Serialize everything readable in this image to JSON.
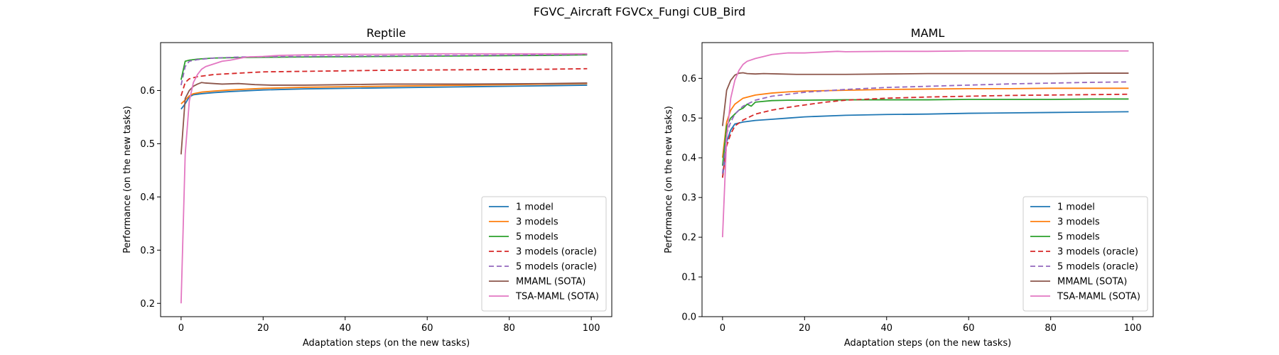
{
  "figure_title": "FGVC_Aircraft FGVCx_Fungi CUB_Bird",
  "chart_data": [
    {
      "type": "line",
      "title": "Reptile",
      "xlabel": "Adaptation steps (on the new tasks)",
      "ylabel": "Performance (on the new tasks)",
      "xlim": [
        -5,
        105
      ],
      "ylim": [
        0.175,
        0.69
      ],
      "xticks": [
        0,
        20,
        40,
        60,
        80,
        100
      ],
      "yticks": [
        0.2,
        0.3,
        0.4,
        0.5,
        0.6
      ],
      "grid": false,
      "legend_position": "lower-right",
      "series": [
        {
          "name": "1 model",
          "color": "#1f77b4",
          "dash": "solid",
          "x": [
            0,
            1,
            2,
            3,
            5,
            8,
            12,
            20,
            30,
            50,
            70,
            90,
            99
          ],
          "y": [
            0.565,
            0.575,
            0.588,
            0.592,
            0.594,
            0.596,
            0.598,
            0.601,
            0.603,
            0.605,
            0.607,
            0.609,
            0.61
          ]
        },
        {
          "name": "3 models",
          "color": "#ff7f0e",
          "dash": "solid",
          "x": [
            0,
            1,
            2,
            3,
            5,
            8,
            12,
            20,
            30,
            50,
            70,
            90,
            99
          ],
          "y": [
            0.575,
            0.582,
            0.59,
            0.594,
            0.597,
            0.599,
            0.601,
            0.604,
            0.606,
            0.608,
            0.61,
            0.612,
            0.613
          ]
        },
        {
          "name": "5 models",
          "color": "#2ca02c",
          "dash": "solid",
          "x": [
            0,
            1,
            2,
            4,
            8,
            15,
            30,
            50,
            70,
            90,
            99
          ],
          "y": [
            0.62,
            0.655,
            0.657,
            0.659,
            0.661,
            0.662,
            0.663,
            0.664,
            0.665,
            0.666,
            0.667
          ]
        },
        {
          "name": "3 models (oracle)",
          "color": "#d62728",
          "dash": "dashed",
          "x": [
            0,
            1,
            2,
            4,
            8,
            15,
            20,
            30,
            50,
            70,
            90,
            99
          ],
          "y": [
            0.59,
            0.615,
            0.622,
            0.626,
            0.63,
            0.633,
            0.635,
            0.636,
            0.638,
            0.639,
            0.64,
            0.641
          ]
        },
        {
          "name": "5 models (oracle)",
          "color": "#9467bd",
          "dash": "dashed",
          "x": [
            0,
            1,
            2,
            4,
            8,
            15,
            30,
            50,
            70,
            90,
            99
          ],
          "y": [
            0.61,
            0.645,
            0.655,
            0.658,
            0.661,
            0.663,
            0.664,
            0.665,
            0.666,
            0.667,
            0.668
          ]
        },
        {
          "name": "MMAML (SOTA)",
          "color": "#8c564b",
          "dash": "solid",
          "x": [
            0,
            1,
            2,
            3,
            4,
            5,
            6,
            8,
            10,
            14,
            18,
            22,
            30,
            40,
            50,
            70,
            90,
            99
          ],
          "y": [
            0.48,
            0.585,
            0.6,
            0.608,
            0.612,
            0.615,
            0.614,
            0.613,
            0.612,
            0.613,
            0.611,
            0.61,
            0.61,
            0.611,
            0.612,
            0.612,
            0.613,
            0.614
          ]
        },
        {
          "name": "TSA-MAML (SOTA)",
          "color": "#e377c2",
          "dash": "solid",
          "x": [
            0,
            1,
            2,
            3,
            4,
            5,
            6,
            8,
            10,
            12,
            14,
            16,
            20,
            24,
            30,
            40,
            50,
            60,
            70,
            80,
            90,
            99
          ],
          "y": [
            0.2,
            0.48,
            0.58,
            0.615,
            0.63,
            0.64,
            0.645,
            0.65,
            0.655,
            0.657,
            0.66,
            0.663,
            0.664,
            0.666,
            0.667,
            0.668,
            0.668,
            0.669,
            0.669,
            0.669,
            0.669,
            0.669
          ]
        }
      ]
    },
    {
      "type": "line",
      "title": "MAML",
      "xlabel": "Adaptation steps (on the new tasks)",
      "ylabel": "Performance (on the new tasks)",
      "xlim": [
        -5,
        105
      ],
      "ylim": [
        0.0,
        0.69
      ],
      "xticks": [
        0,
        20,
        40,
        60,
        80,
        100
      ],
      "yticks": [
        0.0,
        0.1,
        0.2,
        0.3,
        0.4,
        0.5,
        0.6
      ],
      "grid": false,
      "legend_position": "lower-right",
      "series": [
        {
          "name": "1 model",
          "color": "#1f77b4",
          "dash": "solid",
          "x": [
            0,
            1,
            2,
            3,
            5,
            8,
            12,
            16,
            20,
            30,
            40,
            50,
            60,
            70,
            80,
            90,
            99
          ],
          "y": [
            0.35,
            0.44,
            0.47,
            0.485,
            0.49,
            0.494,
            0.497,
            0.5,
            0.503,
            0.507,
            0.509,
            0.51,
            0.512,
            0.513,
            0.514,
            0.515,
            0.516
          ]
        },
        {
          "name": "3 models",
          "color": "#ff7f0e",
          "dash": "solid",
          "x": [
            0,
            1,
            2,
            3,
            5,
            8,
            12,
            16,
            20,
            30,
            40,
            50,
            60,
            70,
            80,
            90,
            99
          ],
          "y": [
            0.4,
            0.49,
            0.52,
            0.535,
            0.55,
            0.558,
            0.563,
            0.566,
            0.568,
            0.57,
            0.572,
            0.573,
            0.574,
            0.574,
            0.575,
            0.575,
            0.575
          ]
        },
        {
          "name": "5 models",
          "color": "#2ca02c",
          "dash": "solid",
          "x": [
            0,
            1,
            2,
            3,
            4,
            5,
            6,
            7,
            8,
            10,
            12,
            16,
            20,
            30,
            40,
            50,
            60,
            70,
            80,
            90,
            99
          ],
          "y": [
            0.38,
            0.48,
            0.5,
            0.51,
            0.52,
            0.525,
            0.535,
            0.53,
            0.54,
            0.542,
            0.544,
            0.545,
            0.545,
            0.546,
            0.546,
            0.546,
            0.547,
            0.547,
            0.547,
            0.548,
            0.548
          ]
        },
        {
          "name": "3 models (oracle)",
          "color": "#d62728",
          "dash": "dashed",
          "x": [
            0,
            1,
            2,
            3,
            5,
            8,
            12,
            16,
            20,
            25,
            30,
            40,
            50,
            60,
            70,
            80,
            90,
            99
          ],
          "y": [
            0.35,
            0.43,
            0.46,
            0.48,
            0.495,
            0.51,
            0.52,
            0.527,
            0.533,
            0.54,
            0.545,
            0.55,
            0.553,
            0.555,
            0.557,
            0.558,
            0.559,
            0.56
          ]
        },
        {
          "name": "5 models (oracle)",
          "color": "#9467bd",
          "dash": "dashed",
          "x": [
            0,
            1,
            2,
            3,
            5,
            8,
            12,
            16,
            20,
            30,
            40,
            50,
            60,
            70,
            80,
            90,
            99
          ],
          "y": [
            0.36,
            0.46,
            0.49,
            0.51,
            0.53,
            0.545,
            0.555,
            0.56,
            0.565,
            0.572,
            0.577,
            0.58,
            0.583,
            0.586,
            0.588,
            0.59,
            0.591
          ]
        },
        {
          "name": "MMAML (SOTA)",
          "color": "#8c564b",
          "dash": "solid",
          "x": [
            0,
            1,
            2,
            3,
            4,
            5,
            6,
            8,
            10,
            14,
            18,
            22,
            30,
            40,
            50,
            60,
            70,
            80,
            90,
            99
          ],
          "y": [
            0.48,
            0.57,
            0.595,
            0.608,
            0.613,
            0.614,
            0.612,
            0.611,
            0.612,
            0.611,
            0.61,
            0.61,
            0.61,
            0.611,
            0.612,
            0.612,
            0.612,
            0.612,
            0.613,
            0.613
          ]
        },
        {
          "name": "TSA-MAML (SOTA)",
          "color": "#e377c2",
          "dash": "solid",
          "x": [
            0,
            1,
            2,
            3,
            4,
            5,
            6,
            8,
            10,
            12,
            14,
            16,
            20,
            24,
            28,
            30,
            40,
            50,
            60,
            70,
            80,
            90,
            99
          ],
          "y": [
            0.2,
            0.45,
            0.55,
            0.595,
            0.62,
            0.635,
            0.643,
            0.65,
            0.655,
            0.66,
            0.662,
            0.664,
            0.664,
            0.666,
            0.668,
            0.667,
            0.668,
            0.668,
            0.669,
            0.669,
            0.669,
            0.669,
            0.669
          ]
        }
      ]
    }
  ]
}
